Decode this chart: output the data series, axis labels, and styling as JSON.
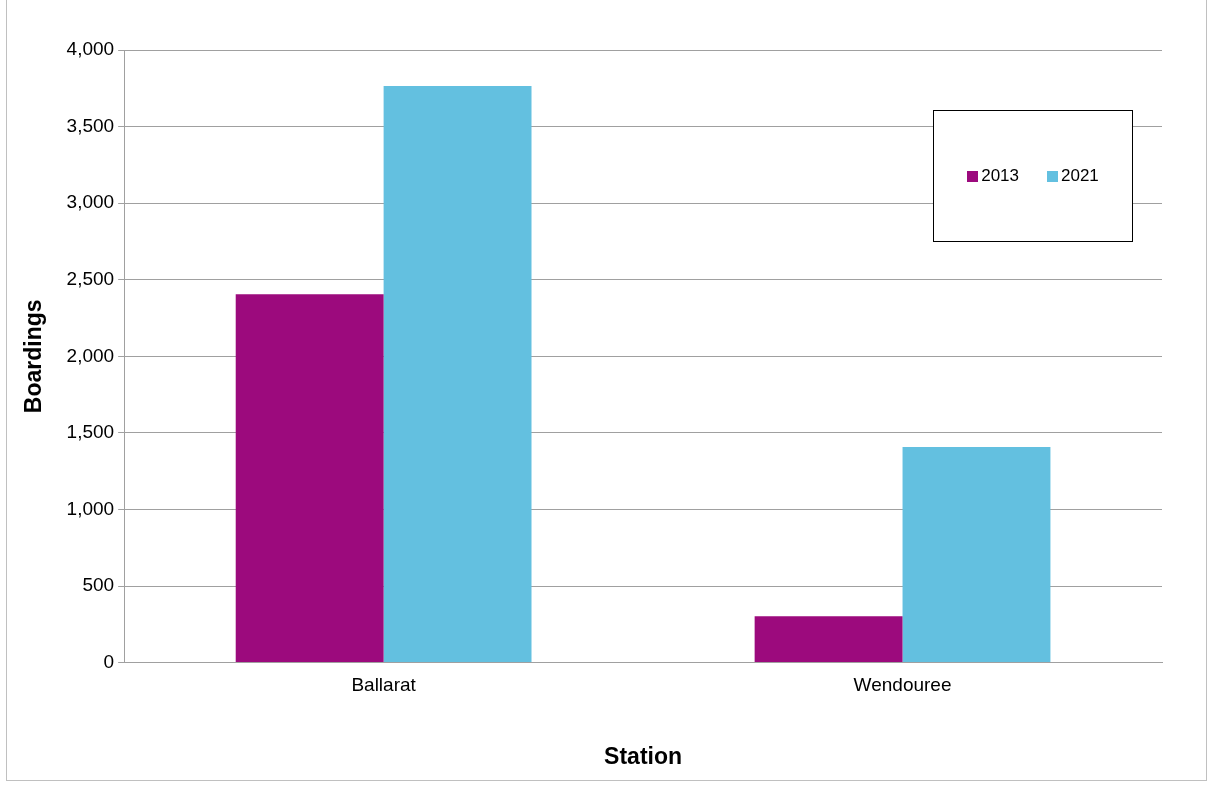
{
  "chart_data": {
    "type": "bar",
    "xlabel": "Station",
    "ylabel": "Boardings",
    "categories": [
      "Ballarat",
      "Wendouree"
    ],
    "series": [
      {
        "name": "2013",
        "color": "#9c0a7d",
        "values": [
          2405,
          302
        ]
      },
      {
        "name": "2021",
        "color": "#63c0e0",
        "values": [
          3765,
          1407
        ]
      }
    ],
    "ylim": [
      0,
      4000
    ],
    "yticks": [
      0,
      500,
      {
        "value": 1000,
        "label": "1,000"
      },
      {
        "value": 1500,
        "label": "1,500"
      },
      {
        "value": 2000,
        "label": "2,000"
      },
      {
        "value": 2500,
        "label": "2,500"
      },
      {
        "value": 3000,
        "label": "3,000"
      },
      {
        "value": 3500,
        "label": "3,500"
      },
      {
        "value": 4000,
        "label": "4,000"
      }
    ],
    "grid": "y",
    "legend": "top right"
  }
}
